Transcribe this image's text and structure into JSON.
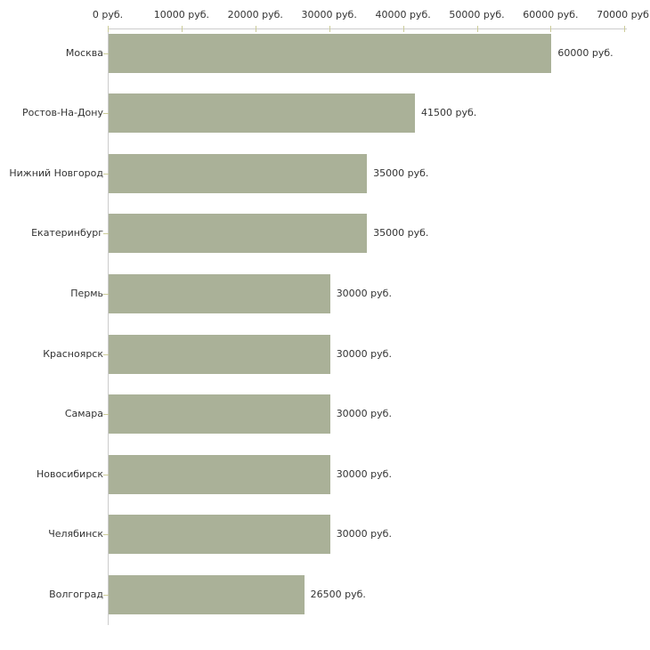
{
  "chart_data": {
    "type": "bar",
    "orientation": "horizontal",
    "title": "",
    "unit": "руб.",
    "categories": [
      "Москва",
      "Ростов-На-Дону",
      "Нижний Новгород",
      "Екатеринбург",
      "Пермь",
      "Красноярск",
      "Самара",
      "Новосибирск",
      "Челябинск",
      "Волгоград"
    ],
    "values": [
      60000,
      41500,
      35000,
      35000,
      30000,
      30000,
      30000,
      30000,
      30000,
      26500
    ],
    "value_labels": [
      "60000 руб.",
      "41500 руб.",
      "35000 руб.",
      "35000 руб.",
      "30000 руб.",
      "30000 руб.",
      "30000 руб.",
      "30000 руб.",
      "30000 руб.",
      "26500 руб."
    ],
    "x_axis": {
      "position": "top",
      "min": 0,
      "max": 70000,
      "ticks": [
        0,
        10000,
        20000,
        30000,
        40000,
        50000,
        60000,
        70000
      ],
      "tick_labels": [
        "0 руб.",
        "10000 руб.",
        "20000 руб.",
        "30000 руб.",
        "40000 руб.",
        "50000 руб.",
        "60000 руб.",
        "70000 руб."
      ]
    },
    "grid": false,
    "legend": false,
    "colors": {
      "bar": "#aab198",
      "axis_line": "#cccccc",
      "tick_mark": "#cccc99",
      "text": "#333333",
      "background": "#ffffff"
    }
  }
}
